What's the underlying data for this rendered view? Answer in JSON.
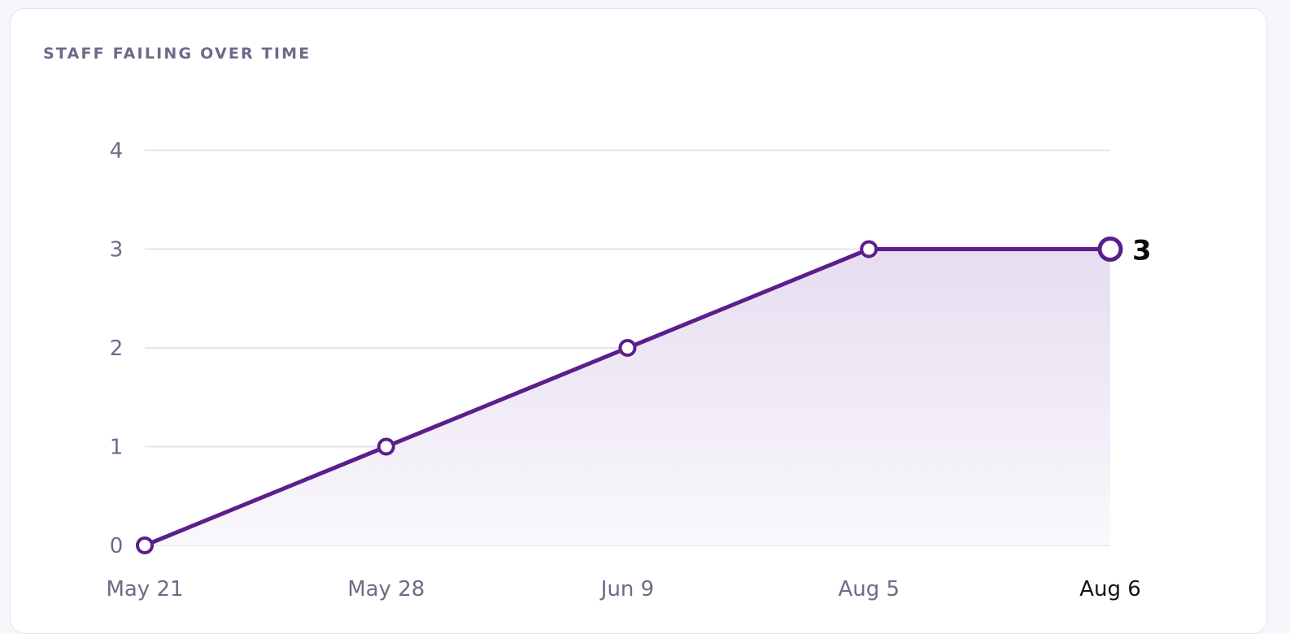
{
  "card": {
    "title": "STAFF FAILING OVER TIME"
  },
  "chart_data": {
    "type": "area",
    "title": "STAFF FAILING OVER TIME",
    "xlabel": "",
    "ylabel": "",
    "categories": [
      "May 21",
      "May 28",
      "Jun 9",
      "Aug 5",
      "Aug 6"
    ],
    "values": [
      0,
      1,
      2,
      3,
      3
    ],
    "ylim": [
      0,
      4
    ],
    "yticks": [
      0,
      1,
      2,
      3,
      4
    ],
    "grid": true,
    "legend": "none",
    "end_value_label": "3",
    "highlighted_category": "Aug 6",
    "colors": {
      "line": "#5b1f8c",
      "fill_top": "#e6ddf0",
      "fill_bottom": "#faf8fc",
      "grid": "#e6e4ec",
      "tick_text": "#6e6a88",
      "highlight_tick_text": "#141414",
      "marker_fill": "#ffffff"
    }
  }
}
